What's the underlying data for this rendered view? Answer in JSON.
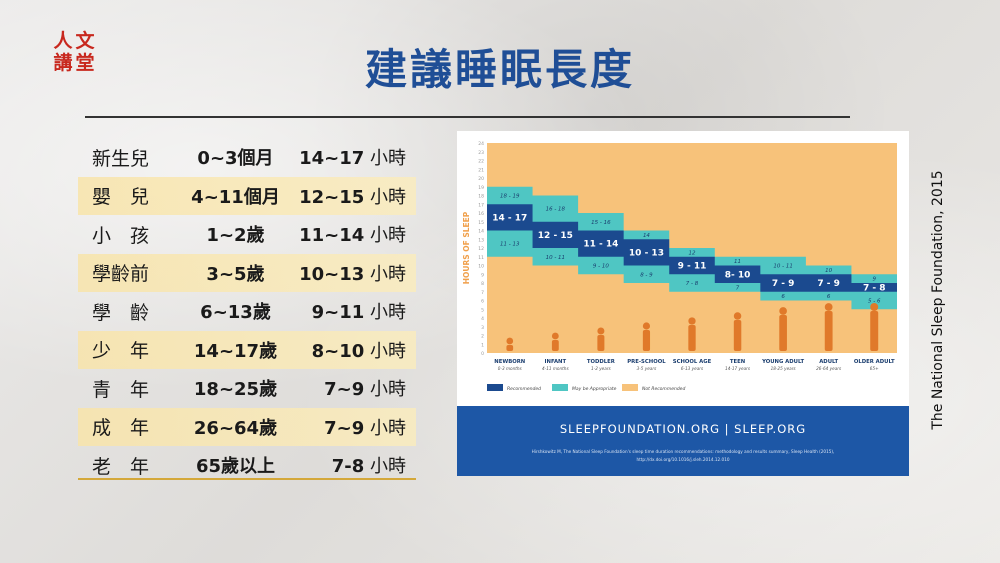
{
  "logo": {
    "chars": [
      "人",
      "文",
      "講",
      "堂"
    ],
    "color": "#c8281e"
  },
  "title": "建議睡眠長度",
  "table": {
    "rows": [
      {
        "group": "新生兒",
        "age": "0~3個月",
        "hours": "14~17",
        "unit": "小時",
        "highlight": false
      },
      {
        "group": "嬰　兒",
        "age": "4~11個月",
        "hours": "12~15",
        "unit": "小時",
        "highlight": true
      },
      {
        "group": "小　孩",
        "age": "1~2歲",
        "hours": "11~14",
        "unit": "小時",
        "highlight": false
      },
      {
        "group": "學齡前",
        "age": "3~5歲",
        "hours": "10~13",
        "unit": "小時",
        "highlight": true
      },
      {
        "group": "學　齡",
        "age": "6~13歲",
        "hours": "9~11",
        "unit": "小時",
        "highlight": false
      },
      {
        "group": "少　年",
        "age": "14~17歲",
        "hours": "8~10",
        "unit": "小時",
        "highlight": true
      },
      {
        "group": "青　年",
        "age": "18~25歲",
        "hours": "7~9",
        "unit": "小時",
        "highlight": false
      },
      {
        "group": "成　年",
        "age": "26~64歲",
        "hours": "7~9",
        "unit": "小時",
        "highlight": true
      },
      {
        "group": "老　年",
        "age": "65歲以上",
        "hours": "7-8",
        "unit": "小時",
        "highlight": false
      }
    ]
  },
  "citation": "The National Sleep Foundation, 2015",
  "colors": {
    "recommended": "#1b4a8f",
    "appropriate": "#4fc6c3",
    "not_recommended": "#f7c27a",
    "banner": "#1d57a6",
    "axis_label": "#f0a04b"
  },
  "chart_data": {
    "type": "bar",
    "ylabel": "HOURS OF SLEEP",
    "ylim": [
      0,
      24
    ],
    "categories": [
      {
        "name": "NEWBORN",
        "sub": "0-3 months"
      },
      {
        "name": "INFANT",
        "sub": "4-11 months"
      },
      {
        "name": "TODDLER",
        "sub": "1-2 years"
      },
      {
        "name": "PRE-SCHOOL",
        "sub": "3-5 years"
      },
      {
        "name": "SCHOOL AGE",
        "sub": "6-13 years"
      },
      {
        "name": "TEEN",
        "sub": "14-17 years"
      },
      {
        "name": "YOUNG ADULT",
        "sub": "18-25 years"
      },
      {
        "name": "ADULT",
        "sub": "26-64 years"
      },
      {
        "name": "OLDER ADULT",
        "sub": "65+"
      }
    ],
    "recommended": [
      [
        14,
        17
      ],
      [
        12,
        15
      ],
      [
        11,
        14
      ],
      [
        10,
        13
      ],
      [
        9,
        11
      ],
      [
        8,
        10
      ],
      [
        7,
        9
      ],
      [
        7,
        9
      ],
      [
        7,
        8
      ]
    ],
    "recommended_labels": [
      "14 - 17",
      "12 - 15",
      "11 - 14",
      "10 - 13",
      "9 - 11",
      "8- 10",
      "7 - 9",
      "7 - 9",
      "7 - 8"
    ],
    "appropriate": [
      [
        11,
        19
      ],
      [
        10,
        18
      ],
      [
        9,
        16
      ],
      [
        8,
        14
      ],
      [
        7,
        12
      ],
      [
        7,
        11
      ],
      [
        6,
        11
      ],
      [
        6,
        10
      ],
      [
        5,
        9
      ]
    ],
    "upper_labels": [
      "18 - 19",
      "16 - 18",
      "15 - 16",
      "14",
      "12",
      "11",
      "10 - 11",
      "10",
      "9"
    ],
    "lower_labels": [
      "11 - 13",
      "10 - 11",
      "9 - 10",
      "8 - 9",
      "7 - 8",
      "7",
      "6",
      "6",
      "5 - 6"
    ],
    "legend": [
      "Recommended",
      "May be Appropriate",
      "Not Recommended"
    ],
    "banner": "SLEEPFOUNDATION.ORG | SLEEP.ORG",
    "reference": [
      "Hirshkowitz M, The National Sleep Foundation's sleep time duration recommendations: methodology and results summary, Sleep Health (2015),",
      "http://dx.doi.org/10.1016/j.sleh.2014.12.010"
    ]
  }
}
